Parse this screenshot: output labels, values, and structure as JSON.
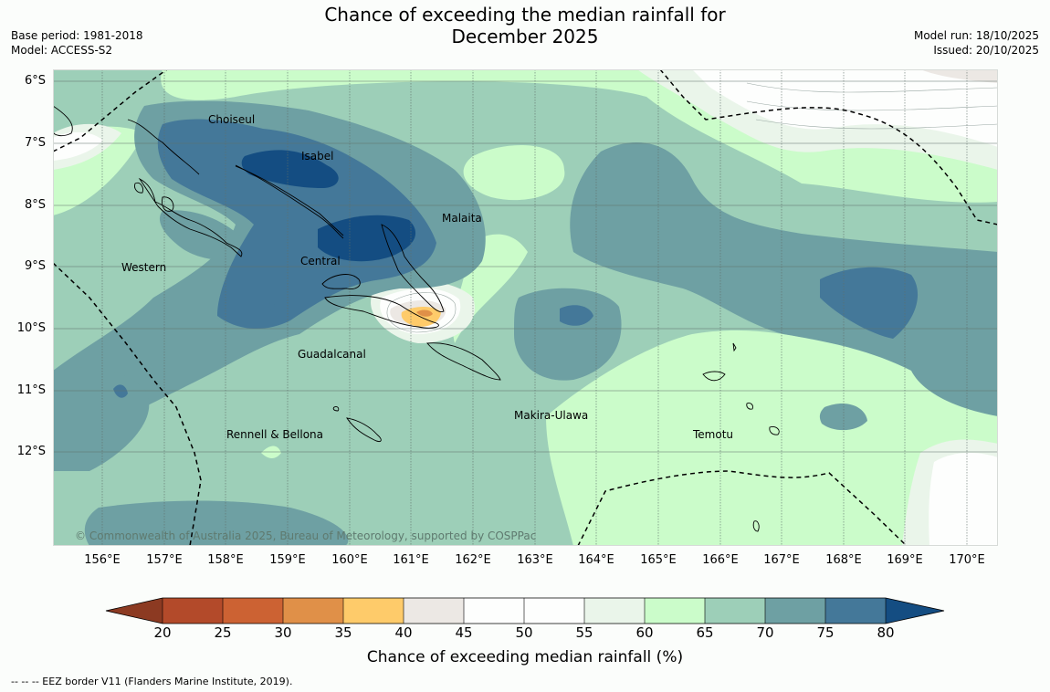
{
  "title_line1": "Chance of exceeding the median rainfall for",
  "title_line2": "December 2025",
  "base_period": "Base period: 1981-2018",
  "model": "Model: ACCESS-S2",
  "model_run": "Model run: 18/10/2025",
  "issued": "Issued: 20/10/2025",
  "lat_labels": [
    "6°S",
    "7°S",
    "8°S",
    "9°S",
    "10°S",
    "11°S",
    "12°S"
  ],
  "lon_labels": [
    "156°E",
    "157°E",
    "158°E",
    "159°E",
    "160°E",
    "161°E",
    "162°E",
    "163°E",
    "164°E",
    "165°E",
    "166°E",
    "167°E",
    "168°E",
    "169°E",
    "170°E"
  ],
  "regions": {
    "choiseul": "Choiseul",
    "isabel": "Isabel",
    "malaita": "Malaita",
    "western": "Western",
    "central": "Central",
    "guadalcanal": "Guadalcanal",
    "makira": "Makira-Ulawa",
    "rennell": "Rennell & Bellona",
    "temotu": "Temotu"
  },
  "copyright": "© Commonwealth of Australia 2025, Bureau of Meteorology, supported by COSPPac",
  "colorbar": {
    "ticks": [
      "20",
      "25",
      "30",
      "35",
      "40",
      "45",
      "50",
      "55",
      "60",
      "65",
      "70",
      "75",
      "80"
    ],
    "colors": {
      "below20": "#8c3a22",
      "c20_25": "#b34a2a",
      "c25_30": "#cc6233",
      "c30_35": "#e09048",
      "c35_40": "#fecb6a",
      "c40_45": "#ece8e4",
      "c45_50": "#fdfefd",
      "c50_55": "#fdfefd",
      "c55_60": "#eaf5ea",
      "c60_65": "#cbfcca",
      "c65_70": "#9dcfb8",
      "c70_75": "#6ea0a3",
      "c75_80": "#447899",
      "above80": "#144d82"
    },
    "label": "Chance of exceeding median rainfall (%)"
  },
  "footnote": "--  --  -- EEZ border V11 (Flanders Marine Institute, 2019)."
}
